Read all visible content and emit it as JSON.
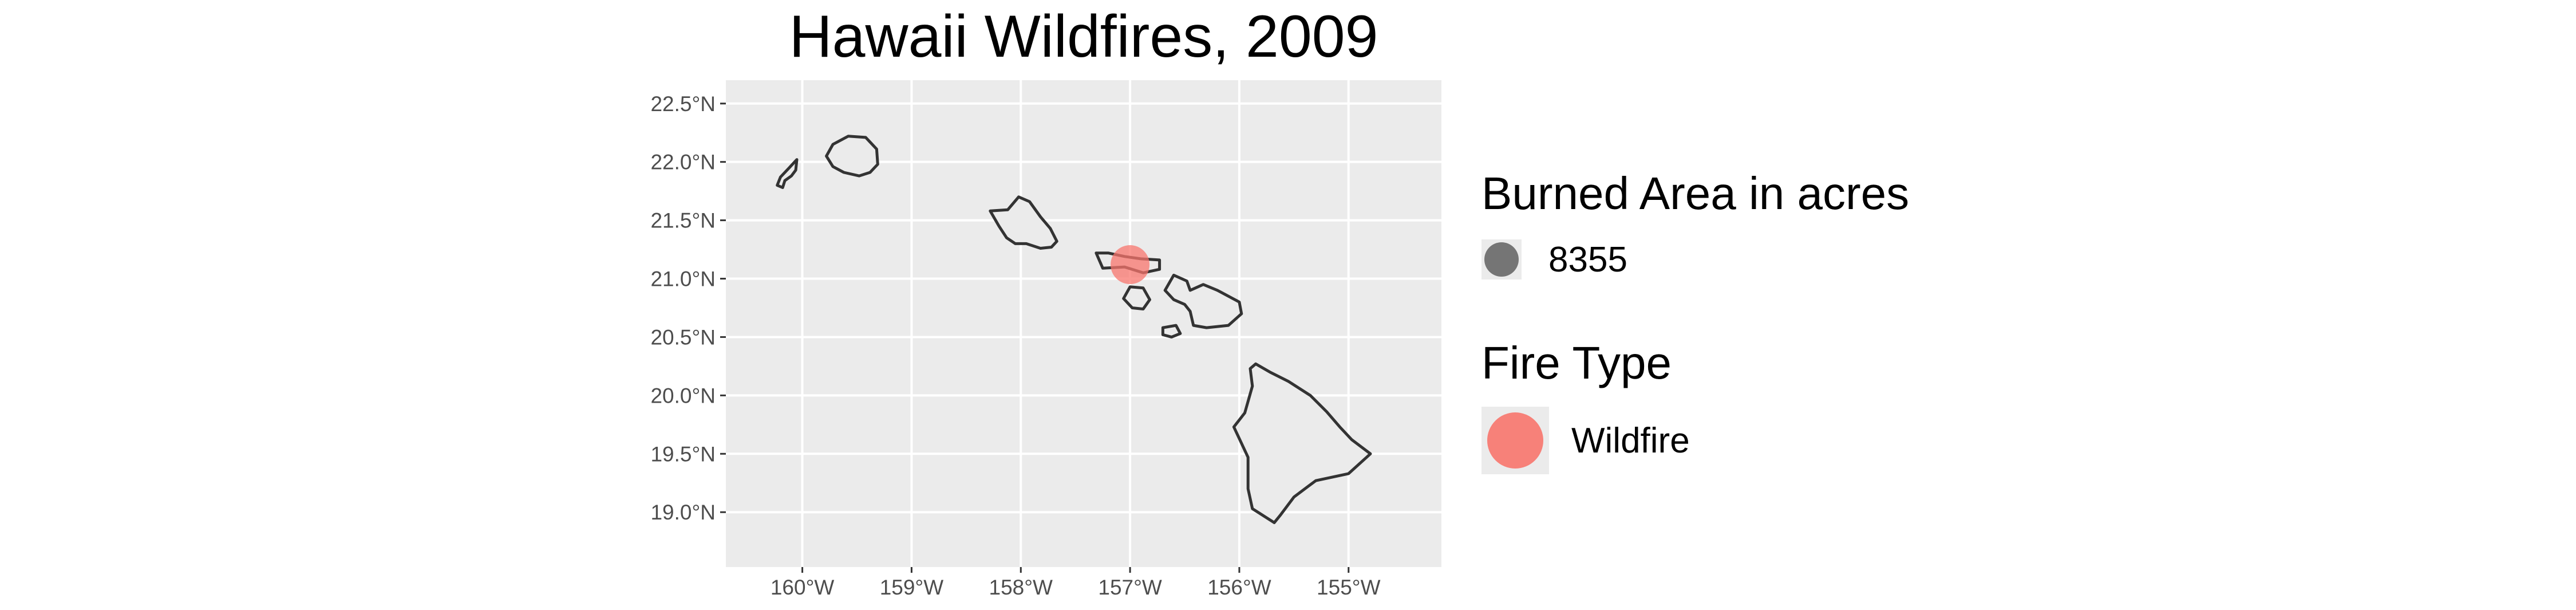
{
  "title": "Hawaii Wildfires, 2009",
  "axes": {
    "x": {
      "ticks": [
        {
          "value": -160,
          "label": "160°W"
        },
        {
          "value": -159,
          "label": "159°W"
        },
        {
          "value": -158,
          "label": "158°W"
        },
        {
          "value": -157,
          "label": "157°W"
        },
        {
          "value": -156,
          "label": "156°W"
        },
        {
          "value": -155,
          "label": "155°W"
        }
      ],
      "range": [
        -160.7,
        -154.15
      ]
    },
    "y": {
      "ticks": [
        {
          "value": 19.0,
          "label": "19.0°N"
        },
        {
          "value": 19.5,
          "label": "19.5°N"
        },
        {
          "value": 20.0,
          "label": "20.0°N"
        },
        {
          "value": 20.5,
          "label": "20.5°N"
        },
        {
          "value": 21.0,
          "label": "21.0°N"
        },
        {
          "value": 21.5,
          "label": "21.5°N"
        },
        {
          "value": 22.0,
          "label": "22.0°N"
        },
        {
          "value": 22.5,
          "label": "22.5°N"
        }
      ],
      "range": [
        18.53,
        22.7
      ]
    }
  },
  "islands": [
    {
      "name": "Niihau",
      "outline": [
        [
          -160.05,
          22.02
        ],
        [
          -160.12,
          21.95
        ],
        [
          -160.2,
          21.87
        ],
        [
          -160.23,
          21.8
        ],
        [
          -160.18,
          21.78
        ],
        [
          -160.16,
          21.84
        ],
        [
          -160.1,
          21.88
        ],
        [
          -160.06,
          21.93
        ],
        [
          -160.05,
          22.02
        ]
      ]
    },
    {
      "name": "Kauai",
      "outline": [
        [
          -159.72,
          22.15
        ],
        [
          -159.58,
          22.22
        ],
        [
          -159.42,
          22.21
        ],
        [
          -159.32,
          22.11
        ],
        [
          -159.31,
          21.98
        ],
        [
          -159.38,
          21.91
        ],
        [
          -159.48,
          21.88
        ],
        [
          -159.62,
          21.91
        ],
        [
          -159.72,
          21.96
        ],
        [
          -159.78,
          22.05
        ],
        [
          -159.72,
          22.15
        ]
      ]
    },
    {
      "name": "Oahu",
      "outline": [
        [
          -158.28,
          21.58
        ],
        [
          -158.12,
          21.59
        ],
        [
          -158.02,
          21.7
        ],
        [
          -157.92,
          21.66
        ],
        [
          -157.82,
          21.53
        ],
        [
          -157.73,
          21.43
        ],
        [
          -157.67,
          21.32
        ],
        [
          -157.72,
          21.27
        ],
        [
          -157.82,
          21.26
        ],
        [
          -157.95,
          21.3
        ],
        [
          -158.05,
          21.3
        ],
        [
          -158.13,
          21.35
        ],
        [
          -158.2,
          21.45
        ],
        [
          -158.28,
          21.58
        ]
      ]
    },
    {
      "name": "Molokai",
      "outline": [
        [
          -157.31,
          21.22
        ],
        [
          -157.2,
          21.22
        ],
        [
          -157.05,
          21.19
        ],
        [
          -156.9,
          21.17
        ],
        [
          -156.73,
          21.16
        ],
        [
          -156.73,
          21.08
        ],
        [
          -156.88,
          21.05
        ],
        [
          -157.05,
          21.1
        ],
        [
          -157.25,
          21.09
        ],
        [
          -157.31,
          21.22
        ]
      ]
    },
    {
      "name": "Lanai",
      "outline": [
        [
          -157.0,
          20.93
        ],
        [
          -156.88,
          20.92
        ],
        [
          -156.82,
          20.82
        ],
        [
          -156.88,
          20.74
        ],
        [
          -156.98,
          20.75
        ],
        [
          -157.06,
          20.83
        ],
        [
          -157.0,
          20.93
        ]
      ]
    },
    {
      "name": "Maui",
      "outline": [
        [
          -156.6,
          21.03
        ],
        [
          -156.48,
          20.98
        ],
        [
          -156.45,
          20.9
        ],
        [
          -156.33,
          20.95
        ],
        [
          -156.2,
          20.9
        ],
        [
          -156.0,
          20.8
        ],
        [
          -155.98,
          20.7
        ],
        [
          -156.1,
          20.6
        ],
        [
          -156.3,
          20.58
        ],
        [
          -156.42,
          20.6
        ],
        [
          -156.45,
          20.72
        ],
        [
          -156.5,
          20.78
        ],
        [
          -156.6,
          20.82
        ],
        [
          -156.68,
          20.9
        ],
        [
          -156.6,
          21.03
        ]
      ]
    },
    {
      "name": "Kahoolawe",
      "outline": [
        [
          -156.7,
          20.58
        ],
        [
          -156.58,
          20.6
        ],
        [
          -156.54,
          20.53
        ],
        [
          -156.62,
          20.5
        ],
        [
          -156.7,
          20.52
        ],
        [
          -156.7,
          20.58
        ]
      ]
    },
    {
      "name": "Hawaii",
      "outline": [
        [
          -155.85,
          20.27
        ],
        [
          -155.72,
          20.2
        ],
        [
          -155.55,
          20.12
        ],
        [
          -155.35,
          20.0
        ],
        [
          -155.2,
          19.86
        ],
        [
          -155.08,
          19.73
        ],
        [
          -154.97,
          19.62
        ],
        [
          -154.8,
          19.5
        ],
        [
          -155.0,
          19.33
        ],
        [
          -155.3,
          19.27
        ],
        [
          -155.5,
          19.13
        ],
        [
          -155.62,
          18.98
        ],
        [
          -155.68,
          18.91
        ],
        [
          -155.88,
          19.03
        ],
        [
          -155.92,
          19.2
        ],
        [
          -155.92,
          19.47
        ],
        [
          -156.05,
          19.73
        ],
        [
          -155.95,
          19.85
        ],
        [
          -155.88,
          20.08
        ],
        [
          -155.9,
          20.23
        ],
        [
          -155.85,
          20.27
        ]
      ]
    }
  ],
  "fires": [
    {
      "lon": -157.0,
      "lat": 21.12,
      "acres": 8355,
      "type": "Wildfire"
    }
  ],
  "legend": {
    "size": {
      "title": "Burned Area in acres",
      "label": "8355"
    },
    "type": {
      "title": "Fire Type",
      "label": "Wildfire"
    }
  },
  "colors": {
    "panel": "#ebebeb",
    "grid": "#ffffff",
    "island_fill": "#ebebeb",
    "island_stroke": "#333333",
    "wildfire": "#F8766D",
    "size_key": "#4d4d4d"
  }
}
